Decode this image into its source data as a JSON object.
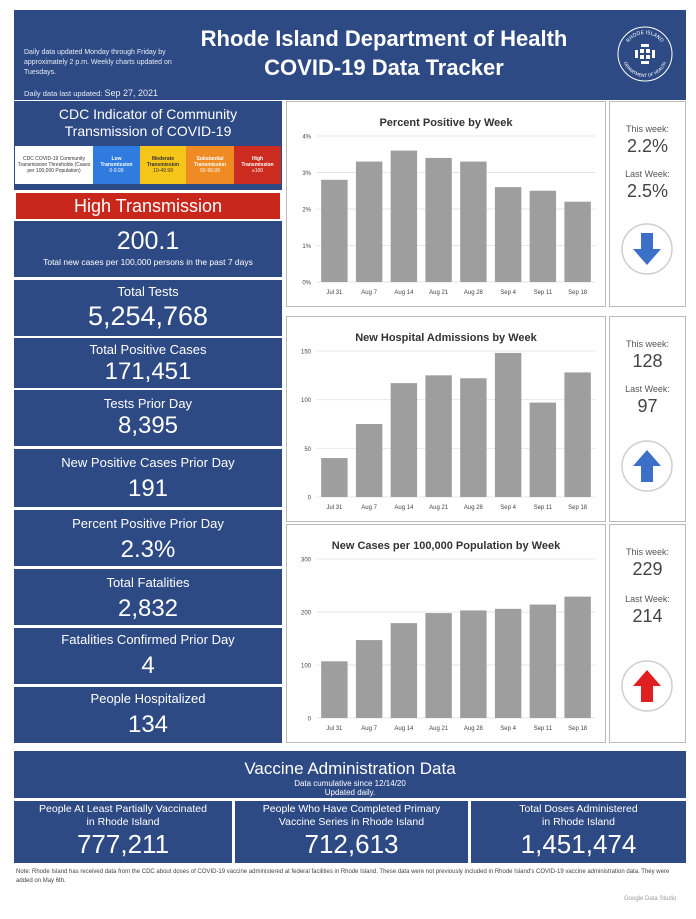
{
  "header": {
    "note": "Daily data updated Monday through Friday by approximately 2 p.m. Weekly charts updated on Tuesdays.",
    "updated_label": "Daily data last updated:",
    "updated_date": "Sep 27, 2021",
    "title_line1": "Rhode Island Department of Health",
    "title_line2": "COVID-19 Data Tracker",
    "seal_text_top": "RHODE ISLAND",
    "seal_text_bottom": "DEPARTMENT OF HEALTH"
  },
  "cdc": {
    "title_line1": "CDC Indicator of Community",
    "title_line2": "Transmission of COVID-19",
    "legend_head": "CDC COVID-19 Community Transmission Thresholds (Cases per 100,000 Population)",
    "levels": [
      {
        "name_line1": "Low",
        "name_line2": "Transmission",
        "range": "0-9.99"
      },
      {
        "name_line1": "Moderate",
        "name_line2": "Transmission",
        "range": "10-49.99"
      },
      {
        "name_line1": "Substantial",
        "name_line2": "Transmission",
        "range": "50-99.99"
      },
      {
        "name_line1": "High",
        "name_line2": "Transmission",
        "range": "≥100"
      }
    ],
    "status": "High Transmission",
    "status_color": "#c9271c"
  },
  "stats": {
    "rate_value": "200.1",
    "rate_label": "Total new cases per 100,000 persons in the past 7 days",
    "total_tests_label": "Total Tests",
    "total_tests_value": "5,254,768",
    "total_pos_label": "Total Positive Cases",
    "total_pos_value": "171,451",
    "tests_prior_label": "Tests Prior Day",
    "tests_prior_value": "8,395",
    "new_pos_label": "New Positive Cases Prior Day",
    "new_pos_value": "191",
    "pct_pos_label": "Percent Positive Prior Day",
    "pct_pos_value": "2.3%",
    "fatal_label": "Total Fatalities",
    "fatal_value": "2,832",
    "fatal_prior_label": "Fatalities Confirmed Prior Day",
    "fatal_prior_value": "4",
    "hosp_label": "People Hospitalized",
    "hosp_value": "134"
  },
  "weekly": {
    "this_week_label": "This week:",
    "last_week_label": "Last Week:",
    "pct_last_week_label": "Last Week:",
    "pos_this": "2.2%",
    "pos_last": "2.5%",
    "adm_this": "128",
    "adm_last": "97",
    "cases_this": "229",
    "cases_last": "214",
    "arrow_down_color": "#3c6fc8",
    "arrow_up_blue_color": "#3c6fc8",
    "arrow_up_red_color": "#e02020",
    "icons": [
      "arrow-down-icon",
      "arrow-up-icon",
      "arrow-up-icon"
    ]
  },
  "chart_data": [
    {
      "type": "bar",
      "title": "Percent Positive by Week",
      "categories": [
        "Jul 31",
        "Aug 7",
        "Aug 14",
        "Aug 21",
        "Aug 28",
        "Sep 4",
        "Sep 11",
        "Sep 18"
      ],
      "values": [
        2.8,
        3.3,
        3.6,
        3.4,
        3.3,
        2.6,
        2.5,
        2.2
      ],
      "ylim": [
        0,
        4
      ],
      "yticks": [
        0,
        1,
        2,
        3,
        4
      ],
      "ytick_labels": [
        "0%",
        "1%",
        "2%",
        "3%",
        "4%"
      ],
      "grid": true,
      "color": "#9e9e9e"
    },
    {
      "type": "bar",
      "title": "New Hospital Admissions by Week",
      "categories": [
        "Jul 31",
        "Aug 7",
        "Aug 14",
        "Aug 21",
        "Aug 28",
        "Sep 4",
        "Sep 11",
        "Sep 18"
      ],
      "values": [
        40,
        75,
        117,
        125,
        122,
        148,
        97,
        128
      ],
      "ylim": [
        0,
        150
      ],
      "yticks": [
        0,
        50,
        100,
        150
      ],
      "ytick_labels": [
        "0",
        "50",
        "100",
        "150"
      ],
      "grid": true,
      "color": "#9e9e9e"
    },
    {
      "type": "bar",
      "title": "New Cases per 100,000 Population by Week",
      "categories": [
        "Jul 31",
        "Aug 7",
        "Aug 14",
        "Aug 21",
        "Aug 28",
        "Sep 4",
        "Sep 11",
        "Sep 18"
      ],
      "values": [
        107,
        147,
        179,
        198,
        203,
        206,
        214,
        229
      ],
      "ylim": [
        0,
        300
      ],
      "yticks": [
        0,
        100,
        200,
        300
      ],
      "ytick_labels": [
        "0",
        "100",
        "200",
        "300"
      ],
      "grid": true,
      "color": "#9e9e9e"
    }
  ],
  "vaccine": {
    "title": "Vaccine Administration Data",
    "subtitle1": "Data cumulative since 12/14/20",
    "subtitle2": "Updated daily.",
    "partial_label_line1": "People At Least Partially Vaccinated",
    "partial_label_line2": "in Rhode Island",
    "partial_value": "777,211",
    "complete_label_line1": "People Who Have Completed Primary",
    "complete_label_line2": "Vaccine Series in Rhode Island",
    "complete_value": "712,613",
    "doses_label_line1": "Total Doses Administered",
    "doses_label_line2": "in Rhode Island",
    "doses_value": "1,451,474"
  },
  "footer": {
    "note": "Note: Rhode Island has received data from the CDC about doses of COVID-19 vaccine administered at federal facilities in Rhode Island. These data were not previously included in Rhode Island's COVID-19 vaccine administration data. They were added on May 6th.",
    "credit": "Google Data Studio"
  }
}
